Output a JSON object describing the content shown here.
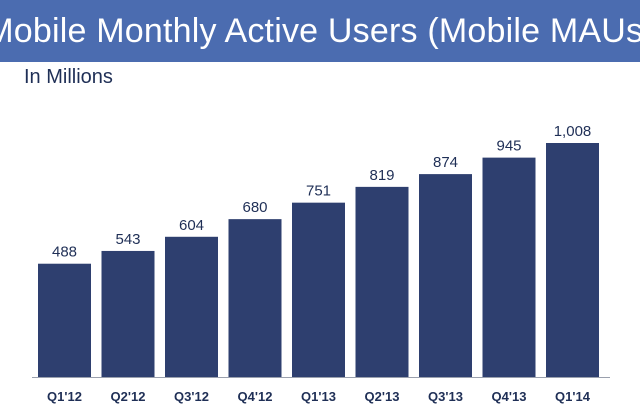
{
  "header": {
    "title": "Mobile Monthly Active Users (Mobile MAUs)",
    "subtitle": "In Millions"
  },
  "colors": {
    "header_bg": "#4b6cb0",
    "bar": "#2e3f6f",
    "axis": "#9aa0ad"
  },
  "chart_data": {
    "type": "bar",
    "title": "Mobile Monthly Active Users (Mobile MAUs)",
    "subtitle": "In Millions",
    "xlabel": "",
    "ylabel": "",
    "categories": [
      "Q1'12",
      "Q2'12",
      "Q3'12",
      "Q4'12",
      "Q1'13",
      "Q2'13",
      "Q3'13",
      "Q4'13",
      "Q1'14"
    ],
    "values": [
      488,
      543,
      604,
      680,
      751,
      819,
      874,
      945,
      1008
    ],
    "value_labels": [
      "488",
      "543",
      "604",
      "680",
      "751",
      "819",
      "874",
      "945",
      "1,008"
    ],
    "ylim": [
      0,
      1008
    ],
    "grid": false,
    "legend": "none"
  }
}
